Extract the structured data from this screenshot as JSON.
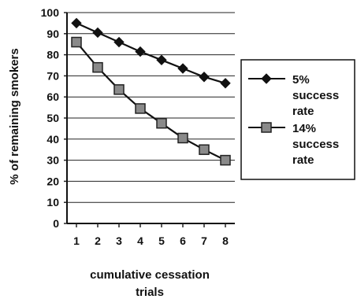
{
  "chart_data": {
    "type": "line",
    "x": [
      1,
      2,
      3,
      4,
      5,
      6,
      7,
      8
    ],
    "series": [
      {
        "name": [
          "5%",
          "success",
          "rate"
        ],
        "marker": "diamond",
        "values": [
          95,
          90.5,
          86,
          81.5,
          77.5,
          73.5,
          69.5,
          66.5
        ]
      },
      {
        "name": [
          "14%",
          "success",
          "rate"
        ],
        "marker": "square",
        "values": [
          86,
          74,
          63.5,
          54.5,
          47.5,
          40.5,
          35,
          30
        ]
      }
    ],
    "ylim": [
      0,
      100
    ],
    "yticks": [
      0,
      10,
      20,
      30,
      40,
      50,
      60,
      70,
      80,
      90,
      100
    ],
    "ylabel": "% of remaining smokers",
    "xlabel": [
      "cumulative cessation",
      "trials"
    ],
    "grid": "horizontal",
    "legend": "right"
  }
}
